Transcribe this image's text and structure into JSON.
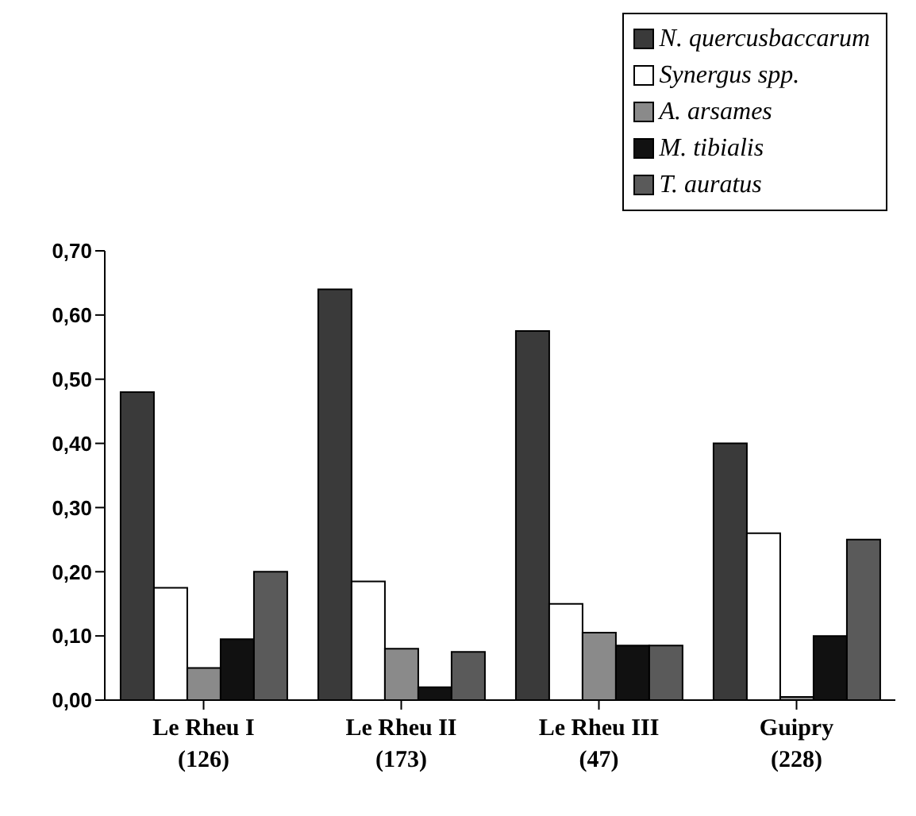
{
  "chart_data": {
    "type": "bar",
    "categories": [
      "Le Rheu I\n(126)",
      "Le Rheu II\n(173)",
      "Le Rheu III\n(47)",
      "Guipry\n(228)"
    ],
    "series": [
      {
        "name": "N. quercusbaccarum",
        "color": "#3a3a3a",
        "values": [
          0.48,
          0.64,
          0.575,
          0.4
        ]
      },
      {
        "name": "Synergus spp.",
        "color": "#ffffff",
        "values": [
          0.175,
          0.185,
          0.15,
          0.26
        ]
      },
      {
        "name": "A. arsames",
        "color": "#8a8a8a",
        "values": [
          0.05,
          0.08,
          0.105,
          0.005
        ]
      },
      {
        "name": "M. tibialis",
        "color": "#111111",
        "values": [
          0.095,
          0.02,
          0.085,
          0.1
        ]
      },
      {
        "name": "T. auratus",
        "color": "#5a5a5a",
        "values": [
          0.2,
          0.075,
          0.085,
          0.25
        ]
      }
    ],
    "ylim": [
      0,
      0.7
    ],
    "yticks": [
      {
        "value": 0,
        "label": "0,00"
      },
      {
        "value": 0.1,
        "label": "0,10"
      },
      {
        "value": 0.2,
        "label": "0,20"
      },
      {
        "value": 0.3,
        "label": "0,30"
      },
      {
        "value": 0.4,
        "label": "0,40"
      },
      {
        "value": 0.5,
        "label": "0,50"
      },
      {
        "value": 0.6,
        "label": "0,60"
      },
      {
        "value": 0.7,
        "label": "0,70"
      }
    ],
    "grid": false,
    "legend": "top right"
  }
}
